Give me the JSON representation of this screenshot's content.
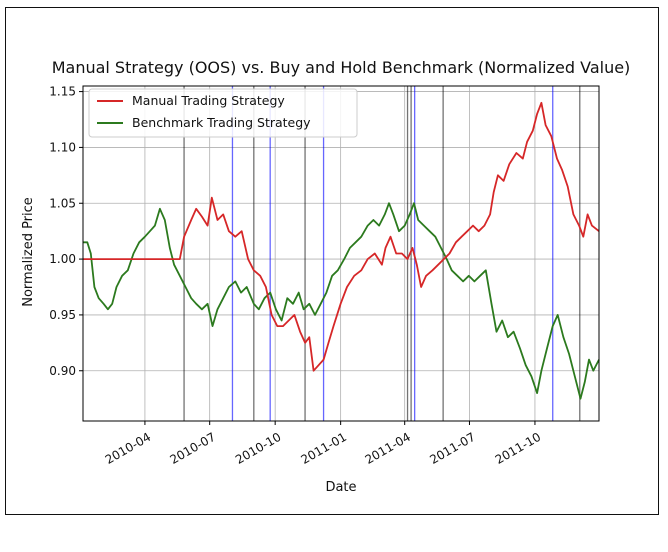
{
  "chart_data": {
    "type": "line",
    "title": "Manual Strategy (OOS) vs. Buy and Hold Benchmark (Normalized Value)",
    "xlabel": "Date",
    "ylabel": "Normalized Price",
    "x_ticks": [
      "2010-04",
      "2010-07",
      "2010-10",
      "2011-01",
      "2011-04",
      "2011-07",
      "2011-10"
    ],
    "y_ticks": [
      "0.90",
      "0.95",
      "1.00",
      "1.05",
      "1.10",
      "1.15"
    ],
    "xlim": [
      "2010-01-04",
      "2011-12-30"
    ],
    "ylim": [
      0.855,
      1.155
    ],
    "grid": true,
    "legend_position": "top-left",
    "series": [
      {
        "name": "Manual Trading Strategy",
        "color": "#d62728",
        "points": [
          [
            "2010-01-04",
            1.0
          ],
          [
            "2010-02-01",
            1.0
          ],
          [
            "2010-03-01",
            1.0
          ],
          [
            "2010-04-01",
            1.0
          ],
          [
            "2010-05-01",
            1.0
          ],
          [
            "2010-05-20",
            1.0
          ],
          [
            "2010-05-26",
            1.02
          ],
          [
            "2010-06-05",
            1.035
          ],
          [
            "2010-06-12",
            1.045
          ],
          [
            "2010-06-20",
            1.038
          ],
          [
            "2010-06-28",
            1.03
          ],
          [
            "2010-07-04",
            1.055
          ],
          [
            "2010-07-12",
            1.035
          ],
          [
            "2010-07-20",
            1.04
          ],
          [
            "2010-07-28",
            1.025
          ],
          [
            "2010-08-06",
            1.02
          ],
          [
            "2010-08-15",
            1.025
          ],
          [
            "2010-08-24",
            1.0
          ],
          [
            "2010-09-01",
            0.99
          ],
          [
            "2010-09-10",
            0.985
          ],
          [
            "2010-09-18",
            0.975
          ],
          [
            "2010-09-26",
            0.95
          ],
          [
            "2010-10-04",
            0.94
          ],
          [
            "2010-10-12",
            0.94
          ],
          [
            "2010-10-20",
            0.945
          ],
          [
            "2010-10-28",
            0.95
          ],
          [
            "2010-11-05",
            0.935
          ],
          [
            "2010-11-12",
            0.925
          ],
          [
            "2010-11-18",
            0.93
          ],
          [
            "2010-11-24",
            0.9
          ],
          [
            "2010-12-01",
            0.905
          ],
          [
            "2010-12-08",
            0.91
          ],
          [
            "2010-12-15",
            0.925
          ],
          [
            "2010-12-22",
            0.94
          ],
          [
            "2011-01-01",
            0.96
          ],
          [
            "2011-01-10",
            0.975
          ],
          [
            "2011-01-20",
            0.985
          ],
          [
            "2011-01-30",
            0.99
          ],
          [
            "2011-02-08",
            1.0
          ],
          [
            "2011-02-18",
            1.005
          ],
          [
            "2011-02-28",
            0.995
          ],
          [
            "2011-03-05",
            1.01
          ],
          [
            "2011-03-12",
            1.02
          ],
          [
            "2011-03-20",
            1.005
          ],
          [
            "2011-03-28",
            1.005
          ],
          [
            "2011-04-05",
            1.0
          ],
          [
            "2011-04-12",
            1.01
          ],
          [
            "2011-04-18",
            0.995
          ],
          [
            "2011-04-24",
            0.975
          ],
          [
            "2011-05-01",
            0.985
          ],
          [
            "2011-05-10",
            0.99
          ],
          [
            "2011-05-18",
            0.995
          ],
          [
            "2011-05-26",
            1.0
          ],
          [
            "2011-06-03",
            1.005
          ],
          [
            "2011-06-12",
            1.015
          ],
          [
            "2011-06-20",
            1.02
          ],
          [
            "2011-06-28",
            1.025
          ],
          [
            "2011-07-06",
            1.03
          ],
          [
            "2011-07-14",
            1.025
          ],
          [
            "2011-07-22",
            1.03
          ],
          [
            "2011-07-30",
            1.04
          ],
          [
            "2011-08-04",
            1.06
          ],
          [
            "2011-08-10",
            1.075
          ],
          [
            "2011-08-18",
            1.07
          ],
          [
            "2011-08-26",
            1.085
          ],
          [
            "2011-09-05",
            1.095
          ],
          [
            "2011-09-14",
            1.09
          ],
          [
            "2011-09-20",
            1.105
          ],
          [
            "2011-09-28",
            1.115
          ],
          [
            "2011-10-04",
            1.13
          ],
          [
            "2011-10-10",
            1.14
          ],
          [
            "2011-10-16",
            1.12
          ],
          [
            "2011-10-24",
            1.11
          ],
          [
            "2011-11-01",
            1.09
          ],
          [
            "2011-11-08",
            1.08
          ],
          [
            "2011-11-16",
            1.065
          ],
          [
            "2011-11-24",
            1.04
          ],
          [
            "2011-12-02",
            1.03
          ],
          [
            "2011-12-08",
            1.02
          ],
          [
            "2011-12-14",
            1.04
          ],
          [
            "2011-12-20",
            1.03
          ],
          [
            "2011-12-30",
            1.025
          ]
        ]
      },
      {
        "name": "Benchmark Trading Strategy",
        "color": "#2c7a1e",
        "points": [
          [
            "2010-01-04",
            1.015
          ],
          [
            "2010-01-10",
            1.015
          ],
          [
            "2010-01-15",
            1.005
          ],
          [
            "2010-01-20",
            0.975
          ],
          [
            "2010-01-26",
            0.965
          ],
          [
            "2010-02-02",
            0.96
          ],
          [
            "2010-02-08",
            0.955
          ],
          [
            "2010-02-14",
            0.96
          ],
          [
            "2010-02-20",
            0.975
          ],
          [
            "2010-02-28",
            0.985
          ],
          [
            "2010-03-08",
            0.99
          ],
          [
            "2010-03-16",
            1.005
          ],
          [
            "2010-03-24",
            1.015
          ],
          [
            "2010-04-01",
            1.02
          ],
          [
            "2010-04-08",
            1.025
          ],
          [
            "2010-04-15",
            1.03
          ],
          [
            "2010-04-22",
            1.045
          ],
          [
            "2010-04-29",
            1.035
          ],
          [
            "2010-05-06",
            1.01
          ],
          [
            "2010-05-12",
            0.995
          ],
          [
            "2010-05-20",
            0.985
          ],
          [
            "2010-05-28",
            0.975
          ],
          [
            "2010-06-05",
            0.965
          ],
          [
            "2010-06-12",
            0.96
          ],
          [
            "2010-06-20",
            0.955
          ],
          [
            "2010-06-28",
            0.96
          ],
          [
            "2010-07-05",
            0.94
          ],
          [
            "2010-07-12",
            0.955
          ],
          [
            "2010-07-20",
            0.965
          ],
          [
            "2010-07-28",
            0.975
          ],
          [
            "2010-08-06",
            0.98
          ],
          [
            "2010-08-14",
            0.97
          ],
          [
            "2010-08-22",
            0.975
          ],
          [
            "2010-09-01",
            0.96
          ],
          [
            "2010-09-08",
            0.955
          ],
          [
            "2010-09-16",
            0.965
          ],
          [
            "2010-09-24",
            0.97
          ],
          [
            "2010-10-02",
            0.955
          ],
          [
            "2010-10-10",
            0.945
          ],
          [
            "2010-10-18",
            0.965
          ],
          [
            "2010-10-26",
            0.96
          ],
          [
            "2010-11-03",
            0.97
          ],
          [
            "2010-11-10",
            0.955
          ],
          [
            "2010-11-18",
            0.96
          ],
          [
            "2010-11-26",
            0.95
          ],
          [
            "2010-12-04",
            0.96
          ],
          [
            "2010-12-12",
            0.97
          ],
          [
            "2010-12-20",
            0.985
          ],
          [
            "2010-12-28",
            0.99
          ],
          [
            "2011-01-06",
            1.0
          ],
          [
            "2011-01-14",
            1.01
          ],
          [
            "2011-01-22",
            1.015
          ],
          [
            "2011-01-30",
            1.02
          ],
          [
            "2011-02-08",
            1.03
          ],
          [
            "2011-02-16",
            1.035
          ],
          [
            "2011-02-24",
            1.03
          ],
          [
            "2011-03-04",
            1.04
          ],
          [
            "2011-03-10",
            1.05
          ],
          [
            "2011-03-16",
            1.04
          ],
          [
            "2011-03-24",
            1.025
          ],
          [
            "2011-04-01",
            1.03
          ],
          [
            "2011-04-08",
            1.04
          ],
          [
            "2011-04-14",
            1.05
          ],
          [
            "2011-04-20",
            1.035
          ],
          [
            "2011-04-28",
            1.03
          ],
          [
            "2011-05-06",
            1.025
          ],
          [
            "2011-05-14",
            1.02
          ],
          [
            "2011-05-22",
            1.01
          ],
          [
            "2011-05-30",
            1.0
          ],
          [
            "2011-06-06",
            0.99
          ],
          [
            "2011-06-14",
            0.985
          ],
          [
            "2011-06-22",
            0.98
          ],
          [
            "2011-06-30",
            0.985
          ],
          [
            "2011-07-08",
            0.98
          ],
          [
            "2011-07-16",
            0.985
          ],
          [
            "2011-07-24",
            0.99
          ],
          [
            "2011-08-01",
            0.96
          ],
          [
            "2011-08-08",
            0.935
          ],
          [
            "2011-08-16",
            0.945
          ],
          [
            "2011-08-24",
            0.93
          ],
          [
            "2011-09-01",
            0.935
          ],
          [
            "2011-09-10",
            0.92
          ],
          [
            "2011-09-18",
            0.905
          ],
          [
            "2011-09-26",
            0.895
          ],
          [
            "2011-10-04",
            0.88
          ],
          [
            "2011-10-10",
            0.9
          ],
          [
            "2011-10-18",
            0.92
          ],
          [
            "2011-10-26",
            0.94
          ],
          [
            "2011-11-02",
            0.95
          ],
          [
            "2011-11-10",
            0.93
          ],
          [
            "2011-11-18",
            0.915
          ],
          [
            "2011-11-26",
            0.895
          ],
          [
            "2011-12-04",
            0.875
          ],
          [
            "2011-12-10",
            0.89
          ],
          [
            "2011-12-16",
            0.91
          ],
          [
            "2011-12-22",
            0.9
          ],
          [
            "2011-12-30",
            0.91
          ]
        ]
      }
    ],
    "vertical_lines": [
      {
        "date": "2010-05-26",
        "color": "#000000"
      },
      {
        "date": "2010-08-02",
        "color": "#0000ff"
      },
      {
        "date": "2010-09-01",
        "color": "#000000"
      },
      {
        "date": "2010-09-24",
        "color": "#0000ff"
      },
      {
        "date": "2010-11-12",
        "color": "#000000"
      },
      {
        "date": "2010-12-08",
        "color": "#0000ff"
      },
      {
        "date": "2011-04-05",
        "color": "#000000"
      },
      {
        "date": "2011-04-10",
        "color": "#000000"
      },
      {
        "date": "2011-04-15",
        "color": "#0000ff"
      },
      {
        "date": "2011-05-25",
        "color": "#000000"
      },
      {
        "date": "2011-10-26",
        "color": "#0000ff"
      },
      {
        "date": "2011-12-03",
        "color": "#000000"
      }
    ]
  }
}
